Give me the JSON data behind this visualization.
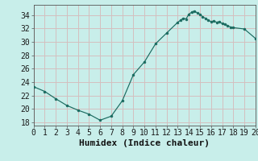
{
  "x": [
    0,
    1,
    2,
    3,
    4,
    5,
    6,
    7,
    8,
    9,
    10,
    11,
    12,
    13,
    13.25,
    13.5,
    13.75,
    14,
    14.25,
    14.5,
    14.75,
    15,
    15.25,
    15.5,
    15.75,
    16,
    16.25,
    16.5,
    16.75,
    17,
    17.25,
    17.5,
    17.75,
    18,
    19,
    20
  ],
  "y": [
    23.3,
    22.6,
    21.5,
    20.5,
    19.8,
    19.2,
    18.3,
    18.9,
    21.2,
    25.1,
    27.0,
    29.7,
    31.3,
    32.9,
    33.2,
    33.5,
    33.4,
    34.1,
    34.4,
    34.6,
    34.3,
    34.1,
    33.7,
    33.5,
    33.2,
    33.0,
    33.1,
    32.9,
    33.0,
    32.7,
    32.6,
    32.4,
    32.2,
    32.1,
    31.9,
    30.5
  ],
  "xlabel": "Humidex (Indice chaleur)",
  "xlim": [
    0,
    20
  ],
  "ylim": [
    17.5,
    35.5
  ],
  "yticks": [
    18,
    20,
    22,
    24,
    26,
    28,
    30,
    32,
    34
  ],
  "xticks": [
    0,
    1,
    2,
    3,
    4,
    5,
    6,
    7,
    8,
    9,
    10,
    11,
    12,
    13,
    14,
    15,
    16,
    17,
    18,
    19,
    20
  ],
  "line_color": "#1a6b60",
  "marker_color": "#1a6b60",
  "bg_color": "#c8eeea",
  "grid_color": "#d4bfbf",
  "spine_color": "#555555",
  "xlabel_fontsize": 8,
  "tick_fontsize": 7
}
